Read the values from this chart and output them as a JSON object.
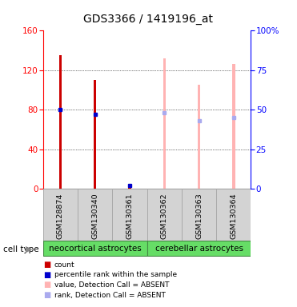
{
  "title": "GDS3366 / 1419196_at",
  "samples": [
    "GSM128874",
    "GSM130340",
    "GSM130361",
    "GSM130362",
    "GSM130363",
    "GSM130364"
  ],
  "values": [
    135,
    110,
    3,
    132,
    105,
    126
  ],
  "percentile_ranks": [
    50,
    47,
    2,
    48,
    43,
    45
  ],
  "detection_call": [
    "P",
    "P",
    "P",
    "A",
    "A",
    "A"
  ],
  "groups": [
    {
      "name": "neocortical astrocytes",
      "indices": [
        0,
        1,
        2
      ]
    },
    {
      "name": "cerebellar astrocytes",
      "indices": [
        3,
        4,
        5
      ]
    }
  ],
  "bar_color_present": "#cc0000",
  "bar_color_absent": "#ffb3b3",
  "rank_color_present": "#0000cc",
  "rank_color_absent": "#aaaaee",
  "ylim_left": [
    0,
    160
  ],
  "ylim_right": [
    0,
    100
  ],
  "yticks_left": [
    0,
    40,
    80,
    120,
    160
  ],
  "yticks_right": [
    0,
    25,
    50,
    75,
    100
  ],
  "ytick_labels_right": [
    "0",
    "25",
    "50",
    "75",
    "100%"
  ],
  "bar_width": 0.08,
  "group_color": "#66dd66",
  "group_border": "#448844"
}
